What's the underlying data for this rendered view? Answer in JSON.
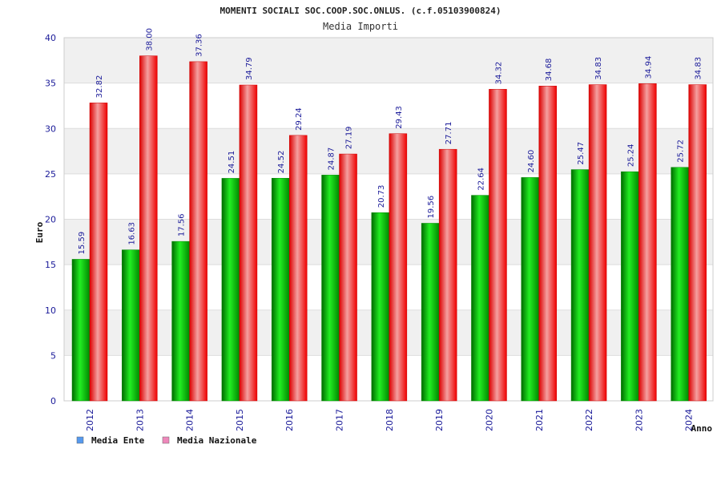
{
  "chart_data": {
    "type": "bar",
    "title": "MOMENTI SOCIALI SOC.COOP.SOC.ONLUS. (c.f.05103900824)",
    "subtitle": "Media Importi",
    "xlabel": "Anno",
    "ylabel": "Euro",
    "ylim": [
      0,
      40
    ],
    "yticks": [
      "0",
      "5",
      "10",
      "15",
      "20",
      "25",
      "30",
      "35",
      "40"
    ],
    "categories": [
      "2012",
      "2013",
      "2014",
      "2015",
      "2016",
      "2017",
      "2018",
      "2019",
      "2020",
      "2021",
      "2022",
      "2023",
      "2024"
    ],
    "series": [
      {
        "name": "Media Ente",
        "color": "#00cc00",
        "values": [
          15.59,
          16.63,
          17.56,
          24.51,
          24.52,
          24.87,
          20.73,
          19.56,
          22.64,
          24.6,
          25.47,
          25.24,
          25.72
        ],
        "labels": [
          "15.59",
          "16.63",
          "17.56",
          "24.51",
          "24.52",
          "24.87",
          "20.73",
          "19.56",
          "22.64",
          "24.60",
          "25.47",
          "25.24",
          "25.72"
        ]
      },
      {
        "name": "Media Nazionale",
        "color": "#ee1111",
        "values": [
          32.82,
          38.0,
          37.36,
          34.79,
          29.24,
          27.19,
          29.43,
          27.71,
          34.32,
          34.68,
          34.83,
          34.94,
          34.83
        ],
        "labels": [
          "32.82",
          "38.00",
          "37.36",
          "34.79",
          "29.24",
          "27.19",
          "29.43",
          "27.71",
          "34.32",
          "34.68",
          "34.83",
          "34.94",
          "34.83"
        ]
      }
    ],
    "legend": [
      {
        "label": "Media Ente",
        "color": "#5599ee"
      },
      {
        "label": "Media Nazionale",
        "color": "#ee88bb"
      }
    ],
    "legend_position": "bottom-left",
    "grid": true
  }
}
